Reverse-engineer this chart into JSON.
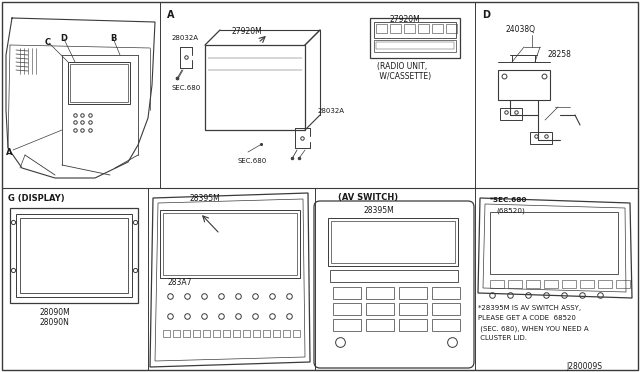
{
  "bg_color": "#ffffff",
  "lc": "#3a3a3a",
  "tc": "#1a1a1a",
  "fig_width": 6.4,
  "fig_height": 3.72,
  "dpi": 100,
  "part_code": "J280009S",
  "note_line1": "*28395M IS AV SWITCH ASSY,",
  "note_line2": "PLEASE GET A CODE  68520",
  "note_line3": " (SEC. 680), WHEN YOU NEED A",
  "note_line4": " CLUSTER LID.",
  "radio_label1": "(RADIO UNIT,",
  "radio_label2": " W/CASSETTE)",
  "sec_note": "*SEC.680",
  "sec_note2": "(68520)"
}
